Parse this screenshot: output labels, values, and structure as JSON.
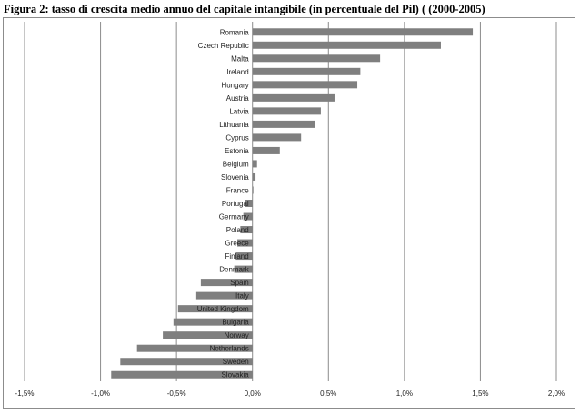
{
  "figure_title": "Figura 2: tasso di crescita medio annuo del capitale intangibile (in percentuale del Pil) ( (2000-2005)",
  "colors": {
    "bar": "#7f7f7f",
    "grid": "#8c8c8c",
    "text": "#222222"
  },
  "chart_data": {
    "type": "bar",
    "orientation": "horizontal",
    "title": "Figura 2: tasso di crescita medio annuo del capitale intangibile (in percentuale del Pil) ( (2000-2005)",
    "xlabel": "",
    "ylabel": "",
    "xlim": [
      -1.5,
      2.0
    ],
    "x_ticks": [
      -1.5,
      -1.0,
      -0.5,
      0.0,
      0.5,
      1.0,
      1.5,
      2.0
    ],
    "x_tick_labels": [
      "-1,5%",
      "-1,0%",
      "-0,5%",
      "0,0%",
      "0,5%",
      "1,0%",
      "1,5%",
      "2,0%"
    ],
    "grid": "vertical",
    "categories": [
      "Romania",
      "Czech Republic",
      "Malta",
      "Ireland",
      "Hungary",
      "Austria",
      "Latvia",
      "Lithuania",
      "Cyprus",
      "Estonia",
      "Belgium",
      "Slovenia",
      "France",
      "Portugal",
      "Germany",
      "Poland",
      "Greece",
      "Finland",
      "Denmark",
      "Spain",
      "Italy",
      "United Kingdom",
      "Bulgaria",
      "Norway",
      "Netherlands",
      "Sweden",
      "Slovakia"
    ],
    "values": [
      1.45,
      1.24,
      0.84,
      0.71,
      0.69,
      0.54,
      0.45,
      0.41,
      0.32,
      0.18,
      0.03,
      0.02,
      0.005,
      -0.05,
      -0.06,
      -0.08,
      -0.1,
      -0.11,
      -0.12,
      -0.34,
      -0.37,
      -0.49,
      -0.52,
      -0.59,
      -0.76,
      -0.87,
      -0.93
    ]
  }
}
